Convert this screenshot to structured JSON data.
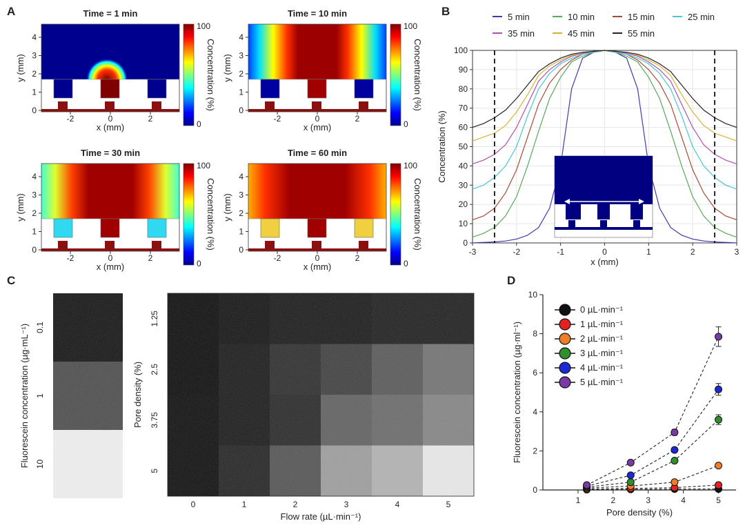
{
  "colors": {
    "domain": "#d9d9d9",
    "electrode": "#8b1010",
    "cold": "#00008f",
    "hot": "#7f0000",
    "dashed": "#111111"
  },
  "panels": {
    "a": "A",
    "b": "B",
    "c": "C",
    "d": "D"
  },
  "panel_a": {
    "maps": [
      {
        "title": "Time = 1 min"
      },
      {
        "title": "Time = 10 min"
      },
      {
        "title": "Time = 30 min"
      },
      {
        "title": "Time = 60 min"
      }
    ],
    "ylabel": "y (mm)",
    "xlabel": "x (mm)",
    "yticks": [
      "0",
      "1",
      "2",
      "3",
      "4"
    ],
    "xticks": [
      "-2",
      "0",
      "2"
    ],
    "colorbar_label": "Concentration (%)",
    "colorbar_max": "100",
    "colorbar_min": "0"
  },
  "panel_c_left": {
    "ylabel": "Fluorescein concentration (µg·mL⁻¹)",
    "ticks": [
      "0.1",
      "1",
      "10"
    ],
    "levels": [
      0.08,
      0.3,
      0.95
    ]
  },
  "panel_c_right": {
    "xlabel": "Flow rate (µL·min⁻¹)",
    "ylabel": "Pore density (%)",
    "xticks": [
      "0",
      "1",
      "2",
      "3",
      "4",
      "5"
    ],
    "yticks": [
      "1.25",
      "2.5",
      "3.75",
      "5"
    ]
  },
  "chart_data": [
    {
      "type": "line",
      "panel": "B",
      "xlabel": "x (mm)",
      "ylabel": "Concentration (%)",
      "xlim": [
        -3,
        3
      ],
      "ylim": [
        0,
        100
      ],
      "xticks": [
        "-3",
        "-2",
        "-1",
        "0",
        "1",
        "2",
        "3"
      ],
      "yticks": [
        "0",
        "10",
        "20",
        "30",
        "40",
        "50",
        "60",
        "70",
        "80",
        "90",
        "100"
      ],
      "dashed_lines_x": [
        -2.5,
        2.5
      ],
      "x": [
        0,
        0.25,
        0.5,
        0.75,
        1.0,
        1.25,
        1.5,
        1.75,
        2.0,
        2.25,
        2.5,
        2.75,
        3.0
      ],
      "series": [
        {
          "name": "5 min",
          "color": "#3b3bb0",
          "values": [
            100,
            99,
            96,
            80,
            40,
            18,
            8,
            4,
            2,
            1,
            0.5,
            0.3,
            0
          ]
        },
        {
          "name": "10 min",
          "color": "#57a857",
          "values": [
            100,
            99,
            97,
            94,
            86,
            75,
            58,
            40,
            24,
            14,
            8,
            5,
            3
          ]
        },
        {
          "name": "15 min",
          "color": "#a84a32",
          "values": [
            100,
            99,
            98,
            95,
            90,
            83,
            72,
            55,
            38,
            26,
            18,
            14,
            12
          ]
        },
        {
          "name": "25 min",
          "color": "#47c6d6",
          "values": [
            100,
            99,
            98,
            96,
            93,
            88,
            80,
            66,
            50,
            40,
            34,
            30,
            28
          ]
        },
        {
          "name": "35 min",
          "color": "#b050b0",
          "values": [
            100,
            99.5,
            98.5,
            97,
            94,
            90,
            84,
            72,
            60,
            51,
            46,
            43,
            41
          ]
        },
        {
          "name": "45 min",
          "color": "#d6b434",
          "values": [
            100,
            99.5,
            99,
            97.5,
            95,
            92,
            87,
            77,
            68,
            61,
            57,
            55,
            53
          ]
        },
        {
          "name": "55 min",
          "color": "#222222",
          "values": [
            100,
            99.5,
            99,
            98,
            96,
            93,
            89,
            82,
            75,
            69,
            65,
            62,
            60
          ]
        }
      ]
    },
    {
      "type": "heatmap",
      "panel": "C",
      "xlabel": "Flow rate (µL·min⁻¹)",
      "ylabel": "Pore density (%)",
      "categories_x": [
        "0",
        "1",
        "2",
        "3",
        "4",
        "5"
      ],
      "categories_y": [
        "1.25",
        "2.5",
        "3.75",
        "5"
      ],
      "values": [
        [
          0.05,
          0.08,
          0.1,
          0.1,
          0.12,
          0.12
        ],
        [
          0.05,
          0.1,
          0.18,
          0.25,
          0.35,
          0.45
        ],
        [
          0.06,
          0.1,
          0.16,
          0.38,
          0.42,
          0.52
        ],
        [
          0.06,
          0.14,
          0.33,
          0.62,
          0.7,
          0.92
        ]
      ]
    },
    {
      "type": "line",
      "panel": "D",
      "xlabel": "Pore density (%)",
      "ylabel": "Fluorescein concentration (µg·ml⁻¹)",
      "xlim": [
        0,
        5.5
      ],
      "ylim": [
        0,
        10
      ],
      "xticks": [
        "1",
        "2",
        "3",
        "4",
        "5"
      ],
      "yticks": [
        "0",
        "2",
        "4",
        "6",
        "8",
        "10"
      ],
      "x": [
        1.25,
        2.5,
        3.75,
        5
      ],
      "series": [
        {
          "name": "0 µL·min⁻¹",
          "color": "#111111",
          "values": [
            0.02,
            0.03,
            0.05,
            0.05
          ],
          "errors": [
            0.02,
            0.02,
            0.02,
            0.02
          ]
        },
        {
          "name": "1 µL·min⁻¹",
          "color": "#e52020",
          "values": [
            0.05,
            0.08,
            0.12,
            0.25
          ],
          "errors": [
            0.02,
            0.02,
            0.03,
            0.05
          ]
        },
        {
          "name": "2 µL·min⁻¹",
          "color": "#f07e26",
          "values": [
            0.1,
            0.2,
            0.4,
            1.25
          ],
          "errors": [
            0.03,
            0.03,
            0.05,
            0.08
          ]
        },
        {
          "name": "3 µL·min⁻¹",
          "color": "#2f8f2f",
          "values": [
            0.15,
            0.4,
            1.5,
            3.6
          ],
          "errors": [
            0.05,
            0.05,
            0.1,
            0.25
          ]
        },
        {
          "name": "4 µL·min⁻¹",
          "color": "#1c2ad6",
          "values": [
            0.2,
            0.75,
            2.05,
            5.15
          ],
          "errors": [
            0.05,
            0.08,
            0.12,
            0.3
          ]
        },
        {
          "name": "5 µL·min⁻¹",
          "color": "#7a3aa6",
          "values": [
            0.25,
            1.4,
            2.95,
            7.85
          ],
          "errors": [
            0.05,
            0.08,
            0.15,
            0.5
          ]
        }
      ]
    }
  ]
}
